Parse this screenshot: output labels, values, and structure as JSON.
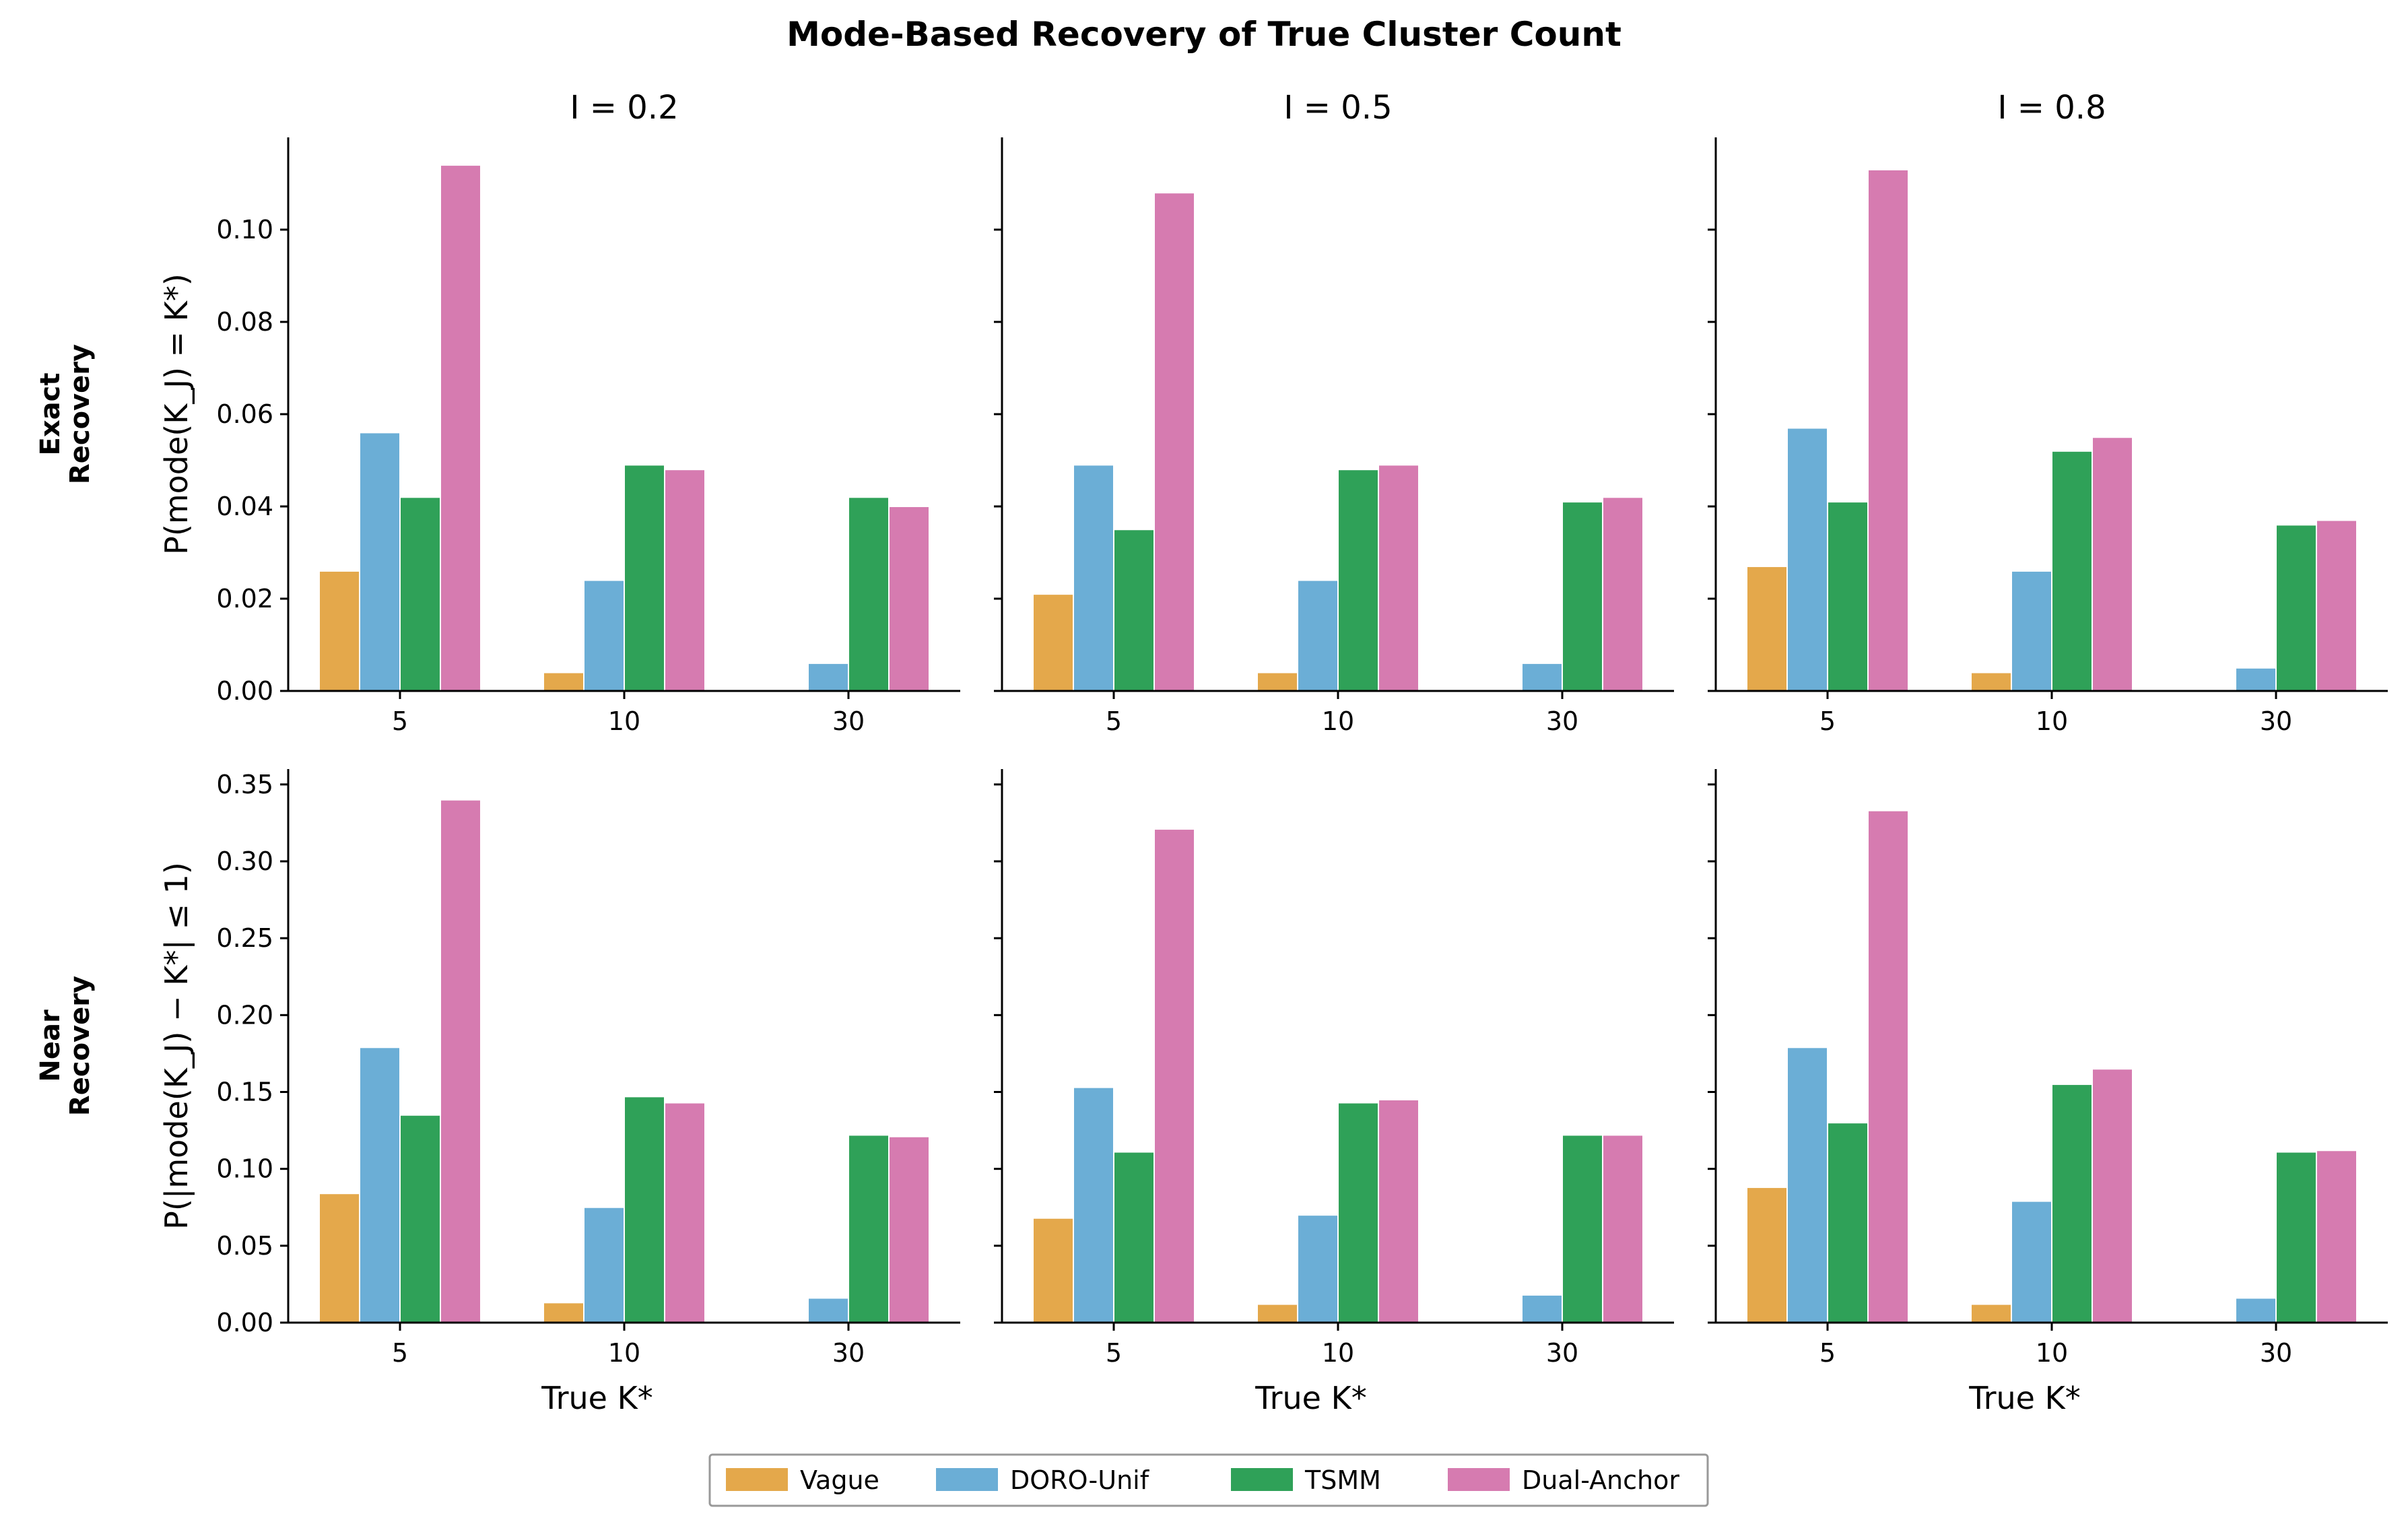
{
  "chart_data": {
    "type": "bar",
    "title": "Mode-Based Recovery of True Cluster Count",
    "colors": {
      "Vague": "#E4A84B",
      "DORO-Unif": "#6BAED6",
      "TSMM": "#2FA158",
      "Dual-Anchor": "#D67BB0"
    },
    "categories": [
      "5",
      "10",
      "30"
    ],
    "column_titles": [
      "I = 0.2",
      "I = 0.5",
      "I = 0.8"
    ],
    "xlabel": "True K*",
    "legend": {
      "position": "bottom-center",
      "entries": [
        "Vague",
        "DORO-Unif",
        "TSMM",
        "Dual-Anchor"
      ]
    },
    "rows": [
      {
        "row_label_line1": "Exact",
        "row_label_line2": "Recovery",
        "ylabel": "P(mode(K_J) = K*)",
        "ylim": [
          0,
          0.12
        ],
        "yticks": [
          "0.00",
          "0.02",
          "0.04",
          "0.06",
          "0.08",
          "0.10"
        ],
        "panels": [
          {
            "I": 0.2,
            "series": [
              {
                "name": "Vague",
                "values": [
                  0.026,
                  0.004,
                  0.0
                ]
              },
              {
                "name": "DORO-Unif",
                "values": [
                  0.056,
                  0.024,
                  0.006
                ]
              },
              {
                "name": "TSMM",
                "values": [
                  0.042,
                  0.049,
                  0.042
                ]
              },
              {
                "name": "Dual-Anchor",
                "values": [
                  0.114,
                  0.048,
                  0.04
                ]
              }
            ]
          },
          {
            "I": 0.5,
            "series": [
              {
                "name": "Vague",
                "values": [
                  0.021,
                  0.004,
                  0.0
                ]
              },
              {
                "name": "DORO-Unif",
                "values": [
                  0.049,
                  0.024,
                  0.006
                ]
              },
              {
                "name": "TSMM",
                "values": [
                  0.035,
                  0.048,
                  0.041
                ]
              },
              {
                "name": "Dual-Anchor",
                "values": [
                  0.108,
                  0.049,
                  0.042
                ]
              }
            ]
          },
          {
            "I": 0.8,
            "series": [
              {
                "name": "Vague",
                "values": [
                  0.027,
                  0.004,
                  0.0
                ]
              },
              {
                "name": "DORO-Unif",
                "values": [
                  0.057,
                  0.026,
                  0.005
                ]
              },
              {
                "name": "TSMM",
                "values": [
                  0.041,
                  0.052,
                  0.036
                ]
              },
              {
                "name": "Dual-Anchor",
                "values": [
                  0.113,
                  0.055,
                  0.037
                ]
              }
            ]
          }
        ]
      },
      {
        "row_label_line1": "Near",
        "row_label_line2": "Recovery",
        "ylabel": "P(|mode(K_J) − K*| ≤ 1)",
        "ylim": [
          0,
          0.36
        ],
        "yticks": [
          "0.00",
          "0.05",
          "0.10",
          "0.15",
          "0.20",
          "0.25",
          "0.30",
          "0.35"
        ],
        "panels": [
          {
            "I": 0.2,
            "series": [
              {
                "name": "Vague",
                "values": [
                  0.084,
                  0.013,
                  0.0
                ]
              },
              {
                "name": "DORO-Unif",
                "values": [
                  0.179,
                  0.075,
                  0.016
                ]
              },
              {
                "name": "TSMM",
                "values": [
                  0.135,
                  0.147,
                  0.122
                ]
              },
              {
                "name": "Dual-Anchor",
                "values": [
                  0.34,
                  0.143,
                  0.121
                ]
              }
            ]
          },
          {
            "I": 0.5,
            "series": [
              {
                "name": "Vague",
                "values": [
                  0.068,
                  0.012,
                  0.0
                ]
              },
              {
                "name": "DORO-Unif",
                "values": [
                  0.153,
                  0.07,
                  0.018
                ]
              },
              {
                "name": "TSMM",
                "values": [
                  0.111,
                  0.143,
                  0.122
                ]
              },
              {
                "name": "Dual-Anchor",
                "values": [
                  0.321,
                  0.145,
                  0.122
                ]
              }
            ]
          },
          {
            "I": 0.8,
            "series": [
              {
                "name": "Vague",
                "values": [
                  0.088,
                  0.012,
                  0.0
                ]
              },
              {
                "name": "DORO-Unif",
                "values": [
                  0.179,
                  0.079,
                  0.016
                ]
              },
              {
                "name": "TSMM",
                "values": [
                  0.13,
                  0.155,
                  0.111
                ]
              },
              {
                "name": "Dual-Anchor",
                "values": [
                  0.333,
                  0.165,
                  0.112
                ]
              }
            ]
          }
        ]
      }
    ]
  }
}
